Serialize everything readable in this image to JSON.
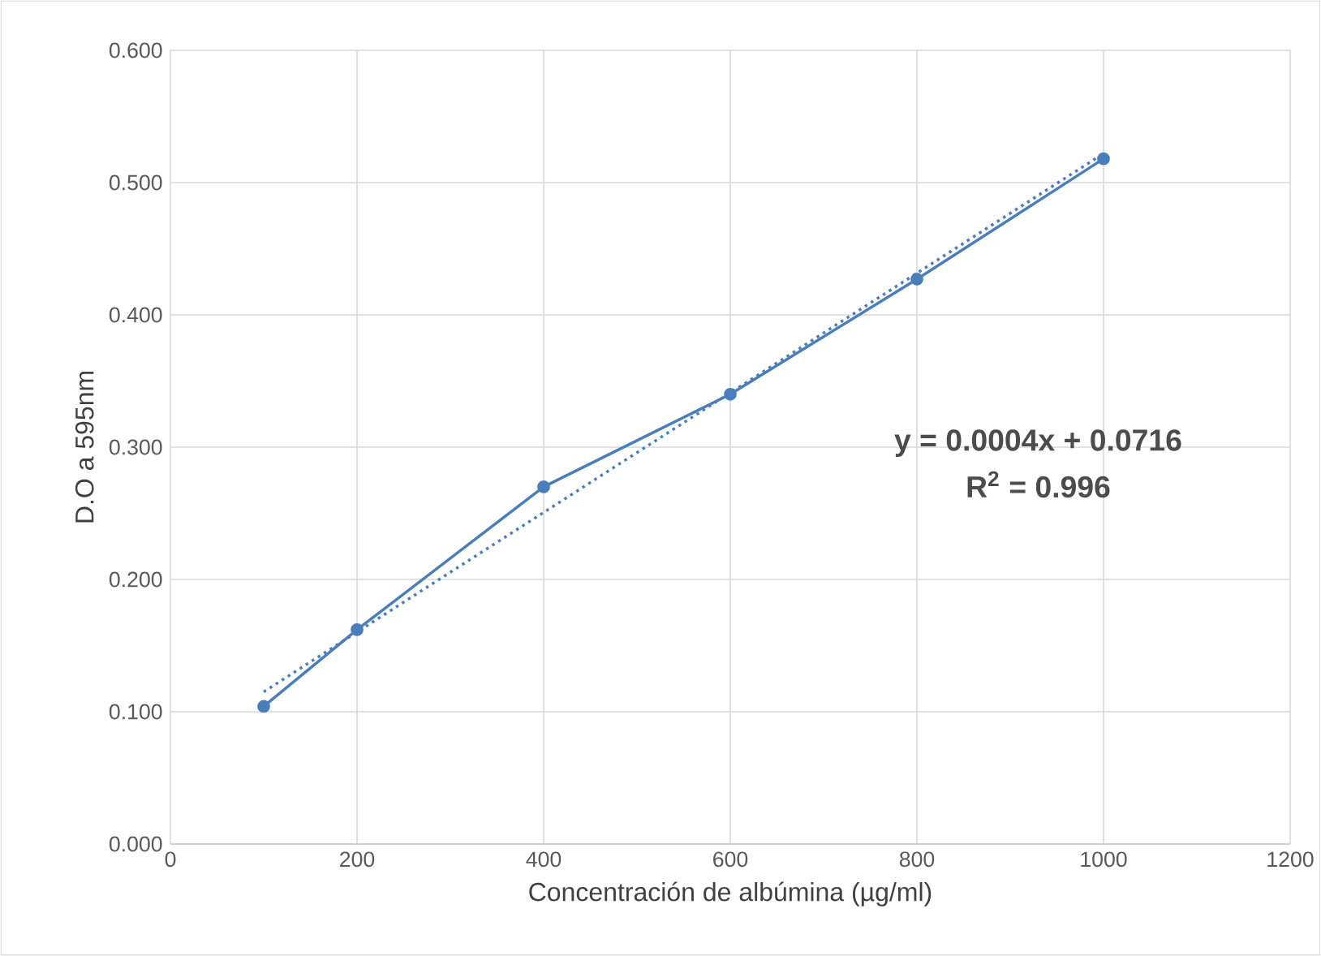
{
  "chart_data": {
    "type": "line",
    "xlabel": "Concentración de albúmina (µg/ml)",
    "ylabel": "D.O a 595nm",
    "xlim": [
      0,
      1200
    ],
    "ylim": [
      0,
      0.6
    ],
    "xticks": [
      0,
      200,
      400,
      600,
      800,
      1000,
      1200
    ],
    "yticks": [
      {
        "value": 0,
        "label": "0.000"
      },
      {
        "value": 0.1,
        "label": "0.100"
      },
      {
        "value": 0.2,
        "label": "0.200"
      },
      {
        "value": 0.3,
        "label": "0.300"
      },
      {
        "value": 0.4,
        "label": "0.400"
      },
      {
        "value": 0.5,
        "label": "0.500"
      },
      {
        "value": 0.6,
        "label": "0.600"
      }
    ],
    "grid": true,
    "series": [
      {
        "color": "#4a7ebb",
        "x": [
          100,
          200,
          400,
          600,
          800,
          1000
        ],
        "values": [
          0.104,
          0.162,
          0.27,
          0.34,
          0.427,
          0.518
        ],
        "marker": "circle",
        "line_style": "solid"
      },
      {
        "color": "#4a7ebb",
        "x": [
          100,
          1000
        ],
        "values": [
          0.115,
          0.522
        ],
        "marker": "none",
        "line_style": "dotted"
      }
    ],
    "annotations": [
      "**y = 0.0004x + 0.0716**",
      "**R$^{2}$ = 0.996**"
    ]
  }
}
